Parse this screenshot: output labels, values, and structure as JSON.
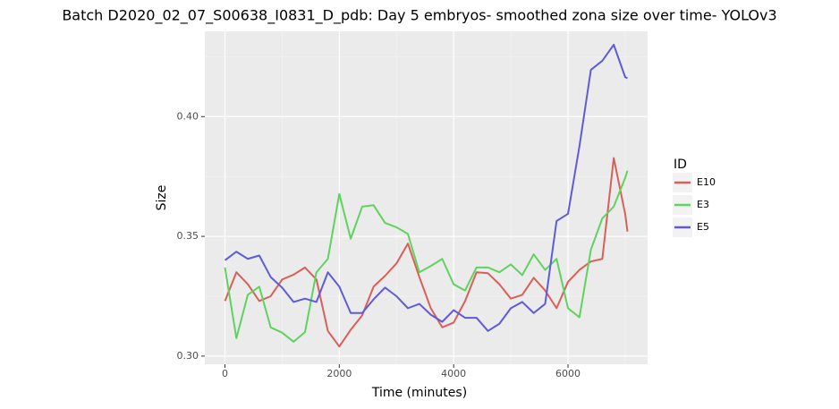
{
  "chart_data": {
    "type": "line",
    "title": "Batch D2020_02_07_S00638_I0831_D_pdb: Day 5 embryos- smoothed zona size over time- YOLOv3",
    "x_label": "Time (minutes)",
    "y_label": "Size",
    "legend_title": "ID",
    "legend_position": "right",
    "grid": true,
    "x": [
      0,
      200,
      400,
      600,
      800,
      1000,
      1200,
      1400,
      1600,
      1800,
      2000,
      2200,
      2400,
      2600,
      2800,
      3000,
      3200,
      3400,
      3600,
      3800,
      4000,
      4200,
      4400,
      4600,
      4800,
      5000,
      5200,
      5400,
      5600,
      5800,
      6000,
      6200,
      6400,
      6600,
      6800,
      7000,
      7040
    ],
    "series": [
      {
        "name": "E10",
        "color": "#d95f58",
        "values": [
          0.323,
          0.335,
          0.33,
          0.323,
          0.325,
          0.332,
          0.334,
          0.337,
          0.332,
          0.3105,
          0.304,
          0.311,
          0.317,
          0.329,
          0.3335,
          0.3387,
          0.347,
          0.333,
          0.32,
          0.312,
          0.314,
          0.323,
          0.335,
          0.3346,
          0.33,
          0.324,
          0.3256,
          0.3327,
          0.3274,
          0.32,
          0.331,
          0.336,
          0.3395,
          0.3406,
          0.3827,
          0.3594,
          0.352
        ]
      },
      {
        "name": "E3",
        "color": "#5ed35e",
        "values": [
          0.337,
          0.3075,
          0.3256,
          0.329,
          0.312,
          0.3098,
          0.306,
          0.31,
          0.335,
          0.3406,
          0.3677,
          0.349,
          0.3624,
          0.363,
          0.3556,
          0.3538,
          0.351,
          0.335,
          0.3376,
          0.3406,
          0.33,
          0.3274,
          0.337,
          0.337,
          0.335,
          0.3383,
          0.3338,
          0.3425,
          0.336,
          0.3406,
          0.32,
          0.3162,
          0.3444,
          0.3575,
          0.3624,
          0.3744,
          0.3774
        ]
      },
      {
        "name": "E5",
        "color": "#5f5bd8",
        "values": [
          0.34,
          0.3436,
          0.3406,
          0.342,
          0.333,
          0.3286,
          0.3226,
          0.324,
          0.3226,
          0.335,
          0.329,
          0.318,
          0.318,
          0.3237,
          0.3286,
          0.325,
          0.32,
          0.3218,
          0.3173,
          0.3143,
          0.3192,
          0.316,
          0.316,
          0.3105,
          0.3135,
          0.32,
          0.3226,
          0.318,
          0.3218,
          0.3564,
          0.3594,
          0.3876,
          0.4195,
          0.4233,
          0.43,
          0.4165,
          0.416
        ]
      }
    ],
    "xlim": [
      -352,
      7392
    ],
    "xticks": [
      0,
      2000,
      4000,
      6000
    ],
    "ylim": [
      0.2966,
      0.4356
    ],
    "yticks": [
      {
        "value": 0.3,
        "label": "0.30"
      },
      {
        "value": 0.35,
        "label": "0.35"
      },
      {
        "value": 0.4,
        "label": "0.40"
      }
    ]
  }
}
